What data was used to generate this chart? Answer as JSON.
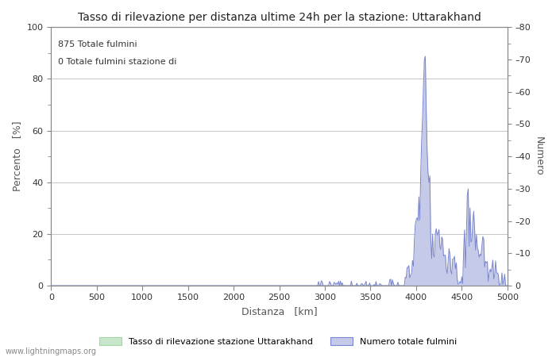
{
  "title": "Tasso di rilevazione per distanza ultime 24h per la stazione: Uttarakhand",
  "xlabel": "Distanza   [km]",
  "ylabel_left": "Percento   [%]",
  "ylabel_right": "Numero",
  "annotation_line1": "875 Totale fulmini",
  "annotation_line2": "0 Totale fulmini stazione di",
  "legend_label1": "Tasso di rilevazione stazione Uttarakhand",
  "legend_label2": "Numero totale fulmini",
  "watermark": "www.lightningmaps.org",
  "xlim": [
    0,
    5000
  ],
  "ylim_left": [
    0,
    100
  ],
  "ylim_right": [
    0,
    80
  ],
  "xticks": [
    0,
    500,
    1000,
    1500,
    2000,
    2500,
    3000,
    3500,
    4000,
    4500,
    5000
  ],
  "yticks_left": [
    0,
    20,
    40,
    60,
    80,
    100
  ],
  "yticks_right": [
    0,
    10,
    20,
    30,
    40,
    50,
    60,
    70,
    80
  ],
  "fill_color_green": "#c8e6c9",
  "fill_color_blue": "#c5cae9",
  "line_color_blue": "#7986cb",
  "line_color_green": "#a5d6a7",
  "background_color": "#ffffff",
  "grid_color": "#bbbbbb",
  "title_fontsize": 10,
  "label_fontsize": 9,
  "tick_fontsize": 8,
  "annotation_fontsize": 8
}
